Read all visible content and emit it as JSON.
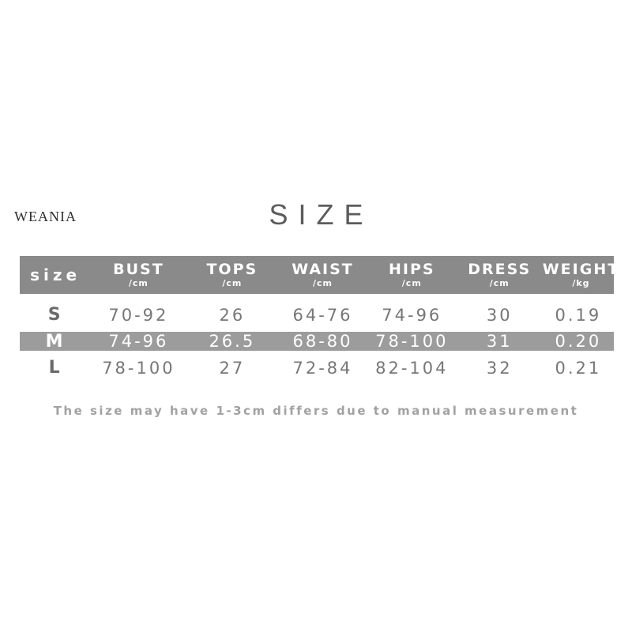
{
  "brand": "WEANIA",
  "title": "SIZE",
  "footer_note": "The size may have 1-3cm differs due to manual measurement",
  "colors": {
    "header_bg": "#8a8a8a",
    "highlight_row_bg": "#9c9c9c",
    "header_text": "#ffffff",
    "body_text": "#777777",
    "title_text": "#5c5c5c",
    "note_text": "#a2a2a2",
    "brand_text": "#2f2f2f",
    "background": "#ffffff"
  },
  "chart_data": {
    "type": "table",
    "title": "SIZE",
    "columns": [
      {
        "label": "size",
        "unit": ""
      },
      {
        "label": "BUST",
        "unit": "/cm"
      },
      {
        "label": "TOPS",
        "unit": "/cm"
      },
      {
        "label": "WAIST",
        "unit": "/cm"
      },
      {
        "label": "HIPS",
        "unit": "/cm"
      },
      {
        "label": "DRESS",
        "unit": "/cm"
      },
      {
        "label": "WEIGHT",
        "unit": "/kg"
      }
    ],
    "rows": [
      {
        "size": "S",
        "highlighted": false,
        "values": [
          "70-92",
          "26",
          "64-76",
          "74-96",
          "30",
          "0.19"
        ]
      },
      {
        "size": "M",
        "highlighted": true,
        "values": [
          "74-96",
          "26.5",
          "68-80",
          "78-100",
          "31",
          "0.20"
        ]
      },
      {
        "size": "L",
        "highlighted": false,
        "values": [
          "78-100",
          "27",
          "72-84",
          "82-104",
          "32",
          "0.21"
        ]
      }
    ]
  }
}
